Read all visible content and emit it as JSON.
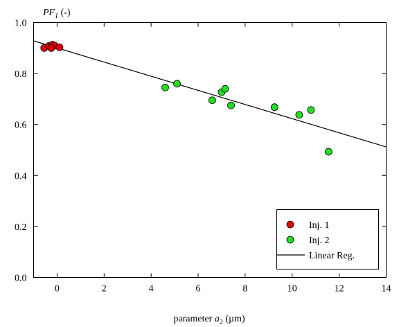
{
  "chart_data": {
    "type": "scatter",
    "title": "",
    "ylabel": {
      "main": "PF",
      "sub": "1",
      "unit": " (-)"
    },
    "xlabel": {
      "main": "parameter ",
      "italic": "a",
      "sub": "2",
      "unit": " (µm)"
    },
    "xlim": [
      -1,
      14
    ],
    "ylim": [
      0.0,
      1.0
    ],
    "xticks": [
      0,
      2,
      4,
      6,
      8,
      10,
      12,
      14
    ],
    "yticks": [
      0.0,
      0.2,
      0.4,
      0.6,
      0.8,
      1.0
    ],
    "xtick_labels": [
      "0",
      "2",
      "4",
      "6",
      "8",
      "10",
      "12",
      "14"
    ],
    "ytick_labels": [
      "0.0",
      "0.2",
      "0.4",
      "0.6",
      "0.8",
      "1.0"
    ],
    "grid": false,
    "legend_position": "bottom-right",
    "series": [
      {
        "name": "Inj. 1",
        "color": "#e00000",
        "marker": "circle",
        "x": [
          -0.55,
          -0.35,
          -0.2,
          -0.1,
          0.1,
          -0.25
        ],
        "y": [
          0.9,
          0.908,
          0.913,
          0.909,
          0.903,
          0.9
        ]
      },
      {
        "name": "Inj. 2",
        "color": "#22dd22",
        "marker": "circle",
        "x": [
          4.6,
          5.1,
          6.6,
          7.0,
          7.15,
          7.4,
          9.25,
          10.3,
          10.8,
          11.55
        ],
        "y": [
          0.745,
          0.76,
          0.695,
          0.727,
          0.74,
          0.675,
          0.668,
          0.638,
          0.657,
          0.493
        ]
      }
    ],
    "regression": {
      "name": "Linear Reg.",
      "x": [
        -1,
        14
      ],
      "y": [
        0.928,
        0.512
      ]
    }
  }
}
